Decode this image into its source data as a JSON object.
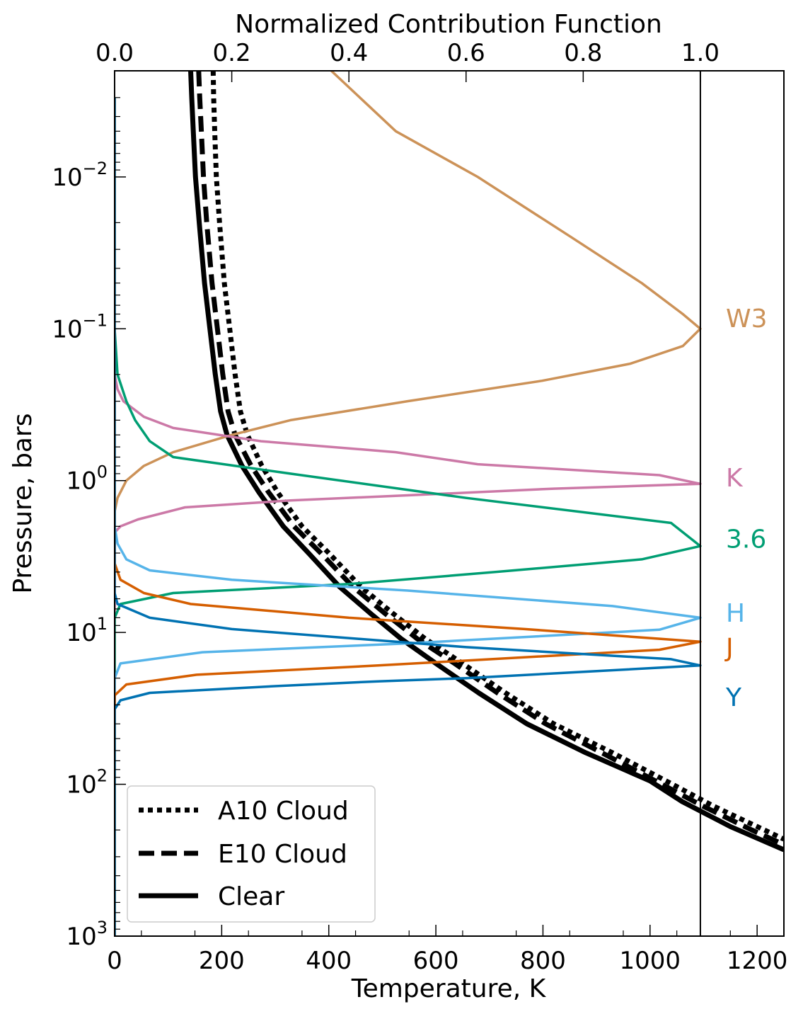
{
  "chart_data": {
    "type": "line",
    "xlabel": "Temperature, K",
    "ylabel": "Pressure, bars",
    "top_xlabel": "Normalized Contribution Function",
    "xlim": [
      0,
      1250
    ],
    "ylim_pressure": [
      0.002,
      1000
    ],
    "y_scale": "log",
    "y_inverted": true,
    "x_ticks": [
      "0",
      "200",
      "400",
      "600",
      "800",
      "1000",
      "1200"
    ],
    "x_tick_values": [
      0,
      200,
      400,
      600,
      800,
      1000,
      1200
    ],
    "top_ticks": [
      "0.0",
      "0.2",
      "0.4",
      "0.6",
      "0.8",
      "1.0"
    ],
    "top_tick_values": [
      0,
      0.2,
      0.4,
      0.6,
      0.8,
      1.0
    ],
    "top_xlim": [
      0,
      1.1426
    ],
    "y_ticks": [
      {
        "base": "10",
        "exp": "−2",
        "value": 0.01
      },
      {
        "base": "10",
        "exp": "−1",
        "value": 0.1
      },
      {
        "base": "10",
        "exp": "0",
        "value": 1
      },
      {
        "base": "10",
        "exp": "1",
        "value": 10
      },
      {
        "base": "10",
        "exp": "2",
        "value": 100
      },
      {
        "base": "10",
        "exp": "3",
        "value": 1000
      }
    ],
    "reference_line_cf": 1.0,
    "temperature_profiles": [
      {
        "name": "A10 Cloud",
        "style": "dotted",
        "color": "#000000",
        "points": [
          [
            184,
            0.002
          ],
          [
            185,
            0.003
          ],
          [
            187,
            0.005
          ],
          [
            190,
            0.01
          ],
          [
            196,
            0.02
          ],
          [
            205,
            0.05
          ],
          [
            215,
            0.1
          ],
          [
            225,
            0.2
          ],
          [
            235,
            0.35
          ],
          [
            248,
            0.5
          ],
          [
            275,
            0.8
          ],
          [
            305,
            1.2
          ],
          [
            350,
            2
          ],
          [
            400,
            3
          ],
          [
            460,
            5
          ],
          [
            520,
            7.5
          ],
          [
            580,
            11
          ],
          [
            650,
            16
          ],
          [
            730,
            25
          ],
          [
            820,
            40
          ],
          [
            930,
            62
          ],
          [
            1030,
            95
          ],
          [
            1120,
            140
          ],
          [
            1200,
            190
          ],
          [
            1250,
            230
          ]
        ]
      },
      {
        "name": "E10 Cloud",
        "style": "dashed",
        "color": "#000000",
        "points": [
          [
            157,
            0.002
          ],
          [
            159,
            0.003
          ],
          [
            162,
            0.005
          ],
          [
            166,
            0.01
          ],
          [
            172,
            0.02
          ],
          [
            182,
            0.05
          ],
          [
            192,
            0.1
          ],
          [
            202,
            0.2
          ],
          [
            212,
            0.35
          ],
          [
            225,
            0.5
          ],
          [
            255,
            0.8
          ],
          [
            288,
            1.2
          ],
          [
            335,
            2
          ],
          [
            385,
            3
          ],
          [
            445,
            5
          ],
          [
            505,
            7.5
          ],
          [
            565,
            11
          ],
          [
            635,
            16
          ],
          [
            715,
            25
          ],
          [
            805,
            40
          ],
          [
            910,
            62
          ],
          [
            1010,
            95
          ],
          [
            1100,
            140
          ],
          [
            1190,
            200
          ],
          [
            1250,
            250
          ]
        ]
      },
      {
        "name": "Clear",
        "style": "solid",
        "color": "#000000",
        "points": [
          [
            142,
            0.002
          ],
          [
            144,
            0.003
          ],
          [
            147,
            0.005
          ],
          [
            151,
            0.01
          ],
          [
            158,
            0.02
          ],
          [
            168,
            0.05
          ],
          [
            178,
            0.1
          ],
          [
            188,
            0.2
          ],
          [
            198,
            0.35
          ],
          [
            210,
            0.5
          ],
          [
            238,
            0.8
          ],
          [
            270,
            1.2
          ],
          [
            315,
            2
          ],
          [
            362,
            3
          ],
          [
            420,
            5
          ],
          [
            478,
            7.5
          ],
          [
            535,
            11
          ],
          [
            600,
            16
          ],
          [
            680,
            25
          ],
          [
            770,
            40
          ],
          [
            880,
            62
          ],
          [
            1000,
            95
          ],
          [
            1060,
            130
          ],
          [
            1150,
            190
          ],
          [
            1250,
            270
          ]
        ]
      }
    ],
    "contribution_functions": [
      {
        "name": "W3",
        "color": "#CC9258",
        "points": [
          [
            0.37,
            0.002
          ],
          [
            0.48,
            0.005
          ],
          [
            0.62,
            0.01
          ],
          [
            0.78,
            0.025
          ],
          [
            0.9,
            0.05
          ],
          [
            0.97,
            0.08
          ],
          [
            1.0,
            0.1
          ],
          [
            0.97,
            0.13
          ],
          [
            0.88,
            0.17
          ],
          [
            0.73,
            0.22
          ],
          [
            0.5,
            0.3
          ],
          [
            0.3,
            0.4
          ],
          [
            0.2,
            0.5
          ],
          [
            0.1,
            0.65
          ],
          [
            0.05,
            0.8
          ],
          [
            0.02,
            1.0
          ],
          [
            0.005,
            1.3
          ],
          [
            0,
            1.6
          ],
          [
            0,
            1000
          ]
        ]
      },
      {
        "name": "K",
        "color": "#CC79A7",
        "points": [
          [
            0,
            0.003
          ],
          [
            0,
            0.2
          ],
          [
            0.005,
            0.25
          ],
          [
            0.015,
            0.3
          ],
          [
            0.05,
            0.38
          ],
          [
            0.1,
            0.45
          ],
          [
            0.25,
            0.55
          ],
          [
            0.48,
            0.65
          ],
          [
            0.62,
            0.78
          ],
          [
            0.93,
            0.92
          ],
          [
            1.0,
            1.05
          ],
          [
            0.75,
            1.13
          ],
          [
            0.5,
            1.25
          ],
          [
            0.3,
            1.35
          ],
          [
            0.12,
            1.5
          ],
          [
            0.04,
            1.8
          ],
          [
            0.01,
            2.0
          ],
          [
            0,
            2.2
          ],
          [
            0,
            1000
          ]
        ]
      },
      {
        "name": "3.6",
        "color": "#009E73",
        "points": [
          [
            0,
            0.003
          ],
          [
            0,
            0.1
          ],
          [
            0.005,
            0.2
          ],
          [
            0.02,
            0.3
          ],
          [
            0.035,
            0.4
          ],
          [
            0.06,
            0.55
          ],
          [
            0.1,
            0.7
          ],
          [
            0.3,
            0.9
          ],
          [
            0.6,
            1.3
          ],
          [
            0.95,
            1.9
          ],
          [
            1.0,
            2.7
          ],
          [
            0.9,
            3.3
          ],
          [
            0.65,
            4.0
          ],
          [
            0.4,
            4.8
          ],
          [
            0.1,
            5.5
          ],
          [
            0.01,
            6.5
          ],
          [
            0,
            8.0
          ],
          [
            0,
            1000
          ]
        ]
      },
      {
        "name": "H",
        "color": "#56B4E9",
        "points": [
          [
            0,
            0.003
          ],
          [
            0,
            2.0
          ],
          [
            0.005,
            2.6
          ],
          [
            0.02,
            3.3
          ],
          [
            0.06,
            3.9
          ],
          [
            0.2,
            4.5
          ],
          [
            0.5,
            5.3
          ],
          [
            0.85,
            6.7
          ],
          [
            1.0,
            8.0
          ],
          [
            0.93,
            9.6
          ],
          [
            0.5,
            11.8
          ],
          [
            0.15,
            13.5
          ],
          [
            0.01,
            16.0
          ],
          [
            0,
            20
          ],
          [
            0,
            1000
          ]
        ]
      },
      {
        "name": "J",
        "color": "#D55E00",
        "points": [
          [
            0,
            0.003
          ],
          [
            0,
            3.5
          ],
          [
            0.01,
            4.5
          ],
          [
            0.05,
            5.5
          ],
          [
            0.13,
            6.5
          ],
          [
            0.4,
            8.0
          ],
          [
            0.7,
            9.5
          ],
          [
            1.0,
            11.5
          ],
          [
            0.93,
            13.0
          ],
          [
            0.45,
            16.5
          ],
          [
            0.14,
            19.0
          ],
          [
            0.02,
            22
          ],
          [
            0,
            26
          ],
          [
            0,
            1000
          ]
        ]
      },
      {
        "name": "Y",
        "color": "#0072B2",
        "points": [
          [
            0,
            0.003
          ],
          [
            0,
            5.5
          ],
          [
            0.005,
            6.5
          ],
          [
            0.06,
            8.0
          ],
          [
            0.2,
            9.5
          ],
          [
            0.6,
            12.5
          ],
          [
            0.95,
            15.0
          ],
          [
            1.0,
            16.5
          ],
          [
            0.6,
            20
          ],
          [
            0.45,
            21
          ],
          [
            0.28,
            22.5
          ],
          [
            0.06,
            25
          ],
          [
            0.01,
            28
          ],
          [
            0,
            32
          ],
          [
            0,
            1000
          ]
        ]
      }
    ],
    "band_labels": [
      {
        "text": "W3",
        "color": "#CC9258",
        "pressure": 0.085
      },
      {
        "text": "K",
        "color": "#CC79A7",
        "pressure": 0.95
      },
      {
        "text": "3.6",
        "color": "#009E73",
        "pressure": 2.4
      },
      {
        "text": "H",
        "color": "#56B4E9",
        "pressure": 7.4
      },
      {
        "text": "J",
        "color": "#D55E00",
        "pressure": 12.5
      },
      {
        "text": "Y",
        "color": "#0072B2",
        "pressure": 26.5
      }
    ],
    "legend": {
      "placement": "lower-left",
      "entries": [
        {
          "label": "A10 Cloud",
          "style": "dotted"
        },
        {
          "label": "E10 Cloud",
          "style": "dashed"
        },
        {
          "label": "Clear",
          "style": "solid"
        }
      ]
    }
  }
}
